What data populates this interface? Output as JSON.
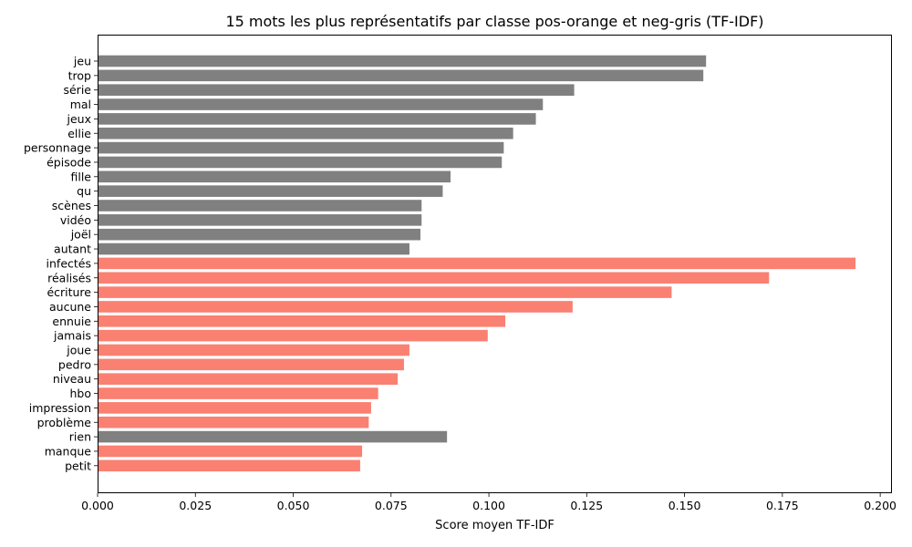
{
  "chart_data": {
    "type": "bar",
    "orientation": "horizontal",
    "title": "15 mots les plus représentatifs par classe pos-orange et neg-gris (TF-IDF)",
    "xlabel": "Score moyen TF-IDF",
    "ylabel": "",
    "xlim": [
      0,
      0.203
    ],
    "xticks": [
      "0.000",
      "0.025",
      "0.050",
      "0.075",
      "0.100",
      "0.125",
      "0.150",
      "0.175",
      "0.200"
    ],
    "grid": false,
    "colors": {
      "neg": "#808080",
      "pos": "#FA8072"
    },
    "bars": [
      {
        "label": "jeu",
        "value": 0.1555,
        "class": "neg"
      },
      {
        "label": "trop",
        "value": 0.1548,
        "class": "neg"
      },
      {
        "label": "série",
        "value": 0.1218,
        "class": "neg"
      },
      {
        "label": "mal",
        "value": 0.1138,
        "class": "neg"
      },
      {
        "label": "jeux",
        "value": 0.112,
        "class": "neg"
      },
      {
        "label": "ellie",
        "value": 0.1062,
        "class": "neg"
      },
      {
        "label": "personnage",
        "value": 0.1038,
        "class": "neg"
      },
      {
        "label": "épisode",
        "value": 0.1033,
        "class": "neg"
      },
      {
        "label": "fille",
        "value": 0.0902,
        "class": "neg"
      },
      {
        "label": "qu",
        "value": 0.0882,
        "class": "neg"
      },
      {
        "label": "scènes",
        "value": 0.0828,
        "class": "neg"
      },
      {
        "label": "vidéo",
        "value": 0.0828,
        "class": "neg"
      },
      {
        "label": "joël",
        "value": 0.0825,
        "class": "neg"
      },
      {
        "label": "autant",
        "value": 0.0797,
        "class": "neg"
      },
      {
        "label": "infectés",
        "value": 0.1937,
        "class": "pos"
      },
      {
        "label": "réalisés",
        "value": 0.1716,
        "class": "pos"
      },
      {
        "label": "écriture",
        "value": 0.1467,
        "class": "pos"
      },
      {
        "label": "aucune",
        "value": 0.1214,
        "class": "pos"
      },
      {
        "label": "ennuie",
        "value": 0.1042,
        "class": "pos"
      },
      {
        "label": "jamais",
        "value": 0.0997,
        "class": "pos"
      },
      {
        "label": "joue",
        "value": 0.0797,
        "class": "pos"
      },
      {
        "label": "pedro",
        "value": 0.0783,
        "class": "pos"
      },
      {
        "label": "niveau",
        "value": 0.0767,
        "class": "pos"
      },
      {
        "label": "hbo",
        "value": 0.0717,
        "class": "pos"
      },
      {
        "label": "impression",
        "value": 0.0699,
        "class": "pos"
      },
      {
        "label": "problème",
        "value": 0.0693,
        "class": "pos"
      },
      {
        "label": "rien",
        "value": 0.0893,
        "class": "neg"
      },
      {
        "label": "manque",
        "value": 0.0676,
        "class": "pos"
      },
      {
        "label": "petit",
        "value": 0.0671,
        "class": "pos"
      }
    ]
  }
}
